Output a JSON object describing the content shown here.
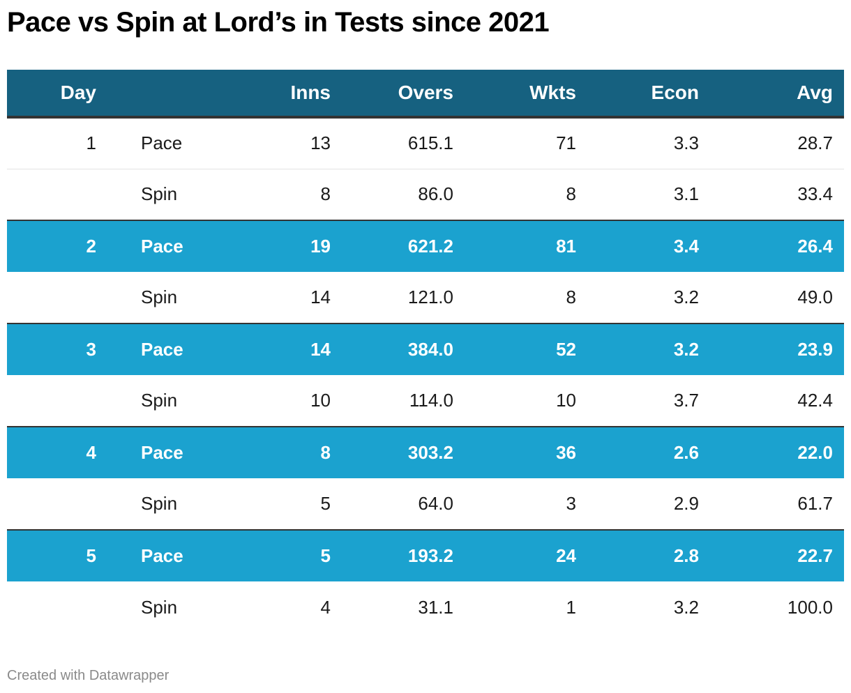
{
  "chart_data": {
    "type": "table",
    "title": "Pace vs Spin at Lord’s in Tests since 2021",
    "columns": [
      "Day",
      "",
      "Inns",
      "Overs",
      "Wkts",
      "Econ",
      "Avg"
    ],
    "rows": [
      {
        "day": "1",
        "type": "Pace",
        "inns": "13",
        "overs": "615.1",
        "wkts": "71",
        "econ": "3.3",
        "avg": "28.7",
        "highlight": false
      },
      {
        "day": "",
        "type": "Spin",
        "inns": "8",
        "overs": "86.0",
        "wkts": "8",
        "econ": "3.1",
        "avg": "33.4",
        "highlight": false
      },
      {
        "day": "2",
        "type": "Pace",
        "inns": "19",
        "overs": "621.2",
        "wkts": "81",
        "econ": "3.4",
        "avg": "26.4",
        "highlight": true
      },
      {
        "day": "",
        "type": "Spin",
        "inns": "14",
        "overs": "121.0",
        "wkts": "8",
        "econ": "3.2",
        "avg": "49.0",
        "highlight": false
      },
      {
        "day": "3",
        "type": "Pace",
        "inns": "14",
        "overs": "384.0",
        "wkts": "52",
        "econ": "3.2",
        "avg": "23.9",
        "highlight": true
      },
      {
        "day": "",
        "type": "Spin",
        "inns": "10",
        "overs": "114.0",
        "wkts": "10",
        "econ": "3.7",
        "avg": "42.4",
        "highlight": false
      },
      {
        "day": "4",
        "type": "Pace",
        "inns": "8",
        "overs": "303.2",
        "wkts": "36",
        "econ": "2.6",
        "avg": "22.0",
        "highlight": true
      },
      {
        "day": "",
        "type": "Spin",
        "inns": "5",
        "overs": "64.0",
        "wkts": "3",
        "econ": "2.9",
        "avg": "61.7",
        "highlight": false
      },
      {
        "day": "5",
        "type": "Pace",
        "inns": "5",
        "overs": "193.2",
        "wkts": "24",
        "econ": "2.8",
        "avg": "22.7",
        "highlight": true
      },
      {
        "day": "",
        "type": "Spin",
        "inns": "4",
        "overs": "31.1",
        "wkts": "1",
        "econ": "3.2",
        "avg": "100.0",
        "highlight": false
      }
    ]
  },
  "footer": "Created with Datawrapper",
  "colors": {
    "header_bg": "#166180",
    "highlight_bg": "#1ba2cf",
    "text": "#1a1a1a",
    "footer_text": "#8a8a8a"
  }
}
